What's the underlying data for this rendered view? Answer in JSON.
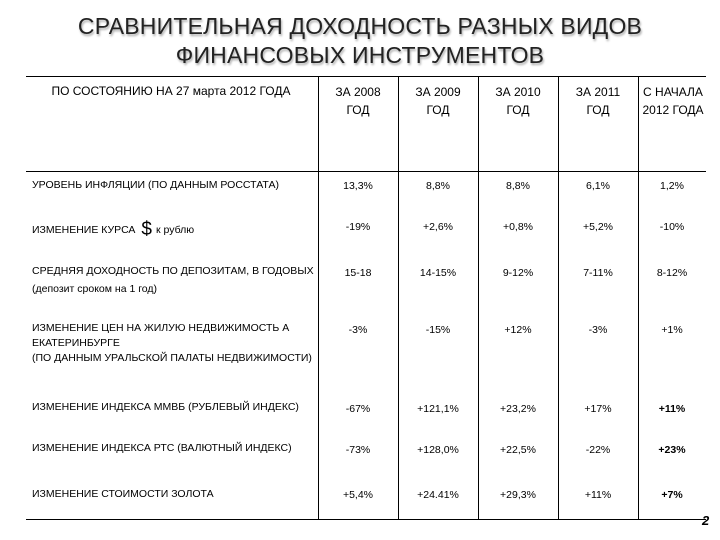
{
  "title": {
    "line1": "СРАВНИТЕЛЬНАЯ ДОХОДНОСТЬ РАЗНЫХ ВИДОВ",
    "line2": "ФИНАНСОВЫХ ИНСТРУМЕНТОВ"
  },
  "header": {
    "label": "ПО СОСТОЯНИЮ НА 27 марта 2012 ГОДА",
    "columns": [
      "ЗА 2008 ГОД",
      "ЗА 2009 ГОД",
      "ЗА 2010 ГОД",
      "ЗА 2011 ГОД",
      "С НАЧАЛА 2012 ГОДА"
    ]
  },
  "rows": [
    {
      "label": "УРОВЕНЬ ИНФЛЯЦИИ (ПО ДАННЫМ РОССТАТА)",
      "values": [
        "13,3%",
        "8,8%",
        "8,8%",
        "6,1%",
        "1,2%"
      ]
    },
    {
      "label_pre": "ИЗМЕНЕНИЕ КУРСА",
      "label_symbol": "$",
      "label_post": "к рублю",
      "values": [
        "-19%",
        "+2,6%",
        "+0,8%",
        "+5,2%",
        "-10%"
      ]
    },
    {
      "label": "СРЕДНЯЯ ДОХОДНОСТЬ ПО ДЕПОЗИТАМ, В ГОДОВЫХ",
      "label_sub": "(депозит сроком на 1 год)",
      "values": [
        "15-18",
        "14-15%",
        "9-12%",
        "7-11%",
        "8-12%"
      ]
    },
    {
      "label": "ИЗМЕНЕНИЕ ЦЕН НА ЖИЛУЮ НЕДВИЖИМОСТЬ А ЕКАТЕРИНБУРГЕ",
      "label_sub": "(ПО ДАННЫМ УРАЛЬСКОЙ ПАЛАТЫ НЕДВИЖИМОСТИ)",
      "values": [
        "-3%",
        "-15%",
        "+12%",
        "-3%",
        "+1%"
      ]
    },
    {
      "label": "ИЗМЕНЕНИЕ ИНДЕКСА ММВБ (РУБЛЕВЫЙ ИНДЕКС)",
      "values": [
        "-67%",
        "+121,1%",
        "+23,2%",
        "+17%",
        "+11%"
      ]
    },
    {
      "label": "ИЗМЕНЕНИЕ ИНДЕКСА РТС (ВАЛЮТНЫЙ ИНДЕКС)",
      "values": [
        "-73%",
        "+128,0%",
        "+22,5%",
        "-22%",
        "+23%"
      ]
    },
    {
      "label": "ИЗМЕНЕНИЕ СТОИМОСТИ ЗОЛОТА",
      "values": [
        "+5,4%",
        "+24.41%",
        "+29,3%",
        "+11%",
        "+7%"
      ]
    }
  ],
  "page_number": "2"
}
